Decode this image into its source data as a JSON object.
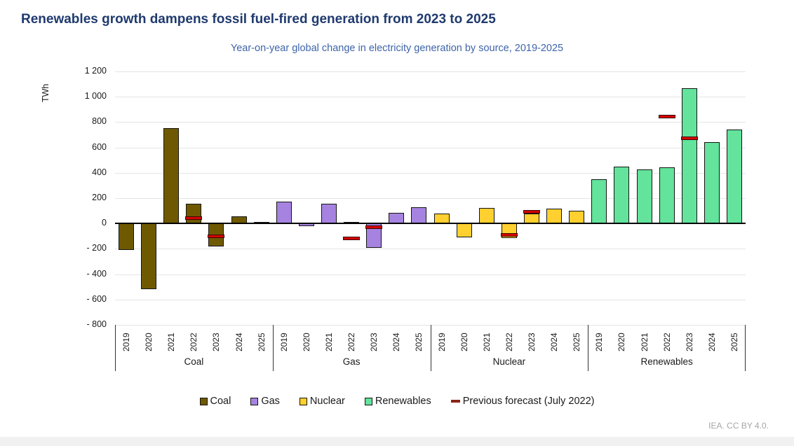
{
  "header": {
    "title": "Renewables growth dampens fossil fuel-fired generation from 2023 to 2025",
    "subtitle": "Year-on-year global change in electricity generation by source, 2019-2025"
  },
  "footer": {
    "credit": "IEA. CC BY 4.0."
  },
  "colors": {
    "title_text": "#1f3a6e",
    "subtitle_text": "#3e64a8",
    "coal": "#6f5900",
    "gas": "#a683e0",
    "nuclear": "#ffd02f",
    "renewables": "#63e39b",
    "forecast_dash": "#d60000",
    "gridline": "#e4e4e4"
  },
  "chart_data": {
    "type": "bar",
    "title": "Renewables growth dampens fossil fuel-fired generation from 2023 to 2025",
    "subtitle": "Year-on-year global change in electricity generation by source, 2019-2025",
    "ylabel": "TWh",
    "ylim": [
      -800,
      1200
    ],
    "ytick_step": 200,
    "yticks": [
      1200,
      1000,
      800,
      600,
      400,
      200,
      0,
      -200,
      -400,
      -600,
      -800
    ],
    "ytick_labels": [
      "1 200",
      "1 000",
      "800",
      "600",
      "400",
      "200",
      "0",
      "- 200",
      "- 400",
      "- 600",
      "- 800"
    ],
    "grid": true,
    "legend_position": "bottom",
    "categories": [
      "2019",
      "2020",
      "2021",
      "2022",
      "2023",
      "2024",
      "2025"
    ],
    "series": [
      {
        "name": "Coal",
        "color": "#6f5900",
        "values": [
          -210,
          -520,
          755,
          155,
          -180,
          55,
          10
        ]
      },
      {
        "name": "Gas",
        "color": "#a683e0",
        "values": [
          170,
          -20,
          155,
          10,
          -195,
          85,
          130
        ]
      },
      {
        "name": "Nuclear",
        "color": "#ffd02f",
        "values": [
          80,
          -110,
          125,
          -115,
          80,
          115,
          100
        ]
      },
      {
        "name": "Renewables",
        "color": "#63e39b",
        "values": [
          350,
          450,
          425,
          445,
          1065,
          640,
          740
        ]
      }
    ],
    "forecast_series": {
      "name": "Previous forecast (July 2022)",
      "color": "#d60000",
      "points": [
        {
          "series": "Coal",
          "year": "2022",
          "value": 45
        },
        {
          "series": "Coal",
          "year": "2023",
          "value": -100
        },
        {
          "series": "Gas",
          "year": "2022",
          "value": -115
        },
        {
          "series": "Gas",
          "year": "2023",
          "value": -30
        },
        {
          "series": "Nuclear",
          "year": "2022",
          "value": -90
        },
        {
          "series": "Nuclear",
          "year": "2023",
          "value": 95
        },
        {
          "series": "Renewables",
          "year": "2022",
          "value": 845
        },
        {
          "series": "Renewables",
          "year": "2023",
          "value": 675
        }
      ]
    }
  }
}
